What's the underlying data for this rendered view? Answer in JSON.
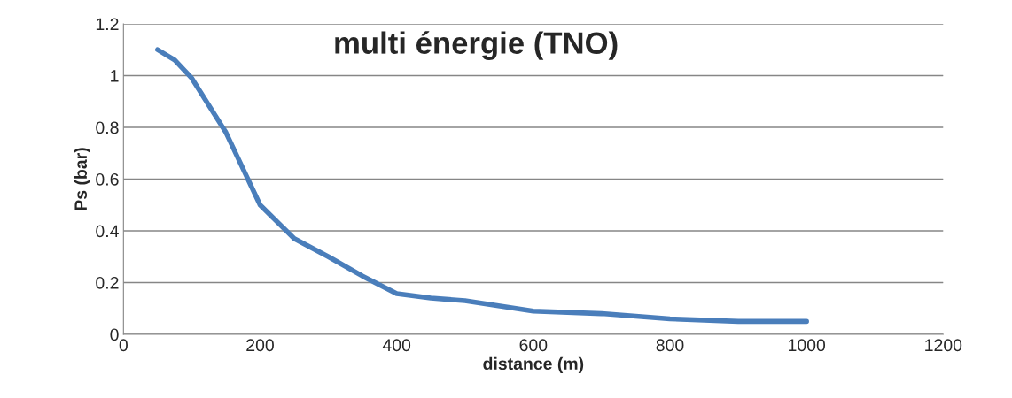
{
  "chart_data": {
    "type": "line",
    "title": "multi énergie (TNO)",
    "xlabel": "distance (m)",
    "ylabel": "Ps (bar)",
    "x": [
      50,
      75,
      100,
      150,
      200,
      250,
      300,
      350,
      400,
      450,
      500,
      600,
      700,
      800,
      900,
      1000
    ],
    "series": [
      {
        "color": "#4a7ebb",
        "values": [
          1.1,
          1.06,
          0.99,
          0.78,
          0.5,
          0.37,
          0.3,
          0.225,
          0.157,
          0.14,
          0.13,
          0.09,
          0.08,
          0.06,
          0.05,
          0.05
        ]
      }
    ],
    "xlim": [
      0,
      1200
    ],
    "xticks": [
      0,
      200,
      400,
      600,
      800,
      1000,
      1200
    ],
    "ylim": [
      0,
      1.2
    ],
    "yticks": [
      0,
      0.2,
      0.4,
      0.6,
      0.8,
      1,
      1.2
    ],
    "grid": "y",
    "marker": "none",
    "line_style": "solid"
  }
}
